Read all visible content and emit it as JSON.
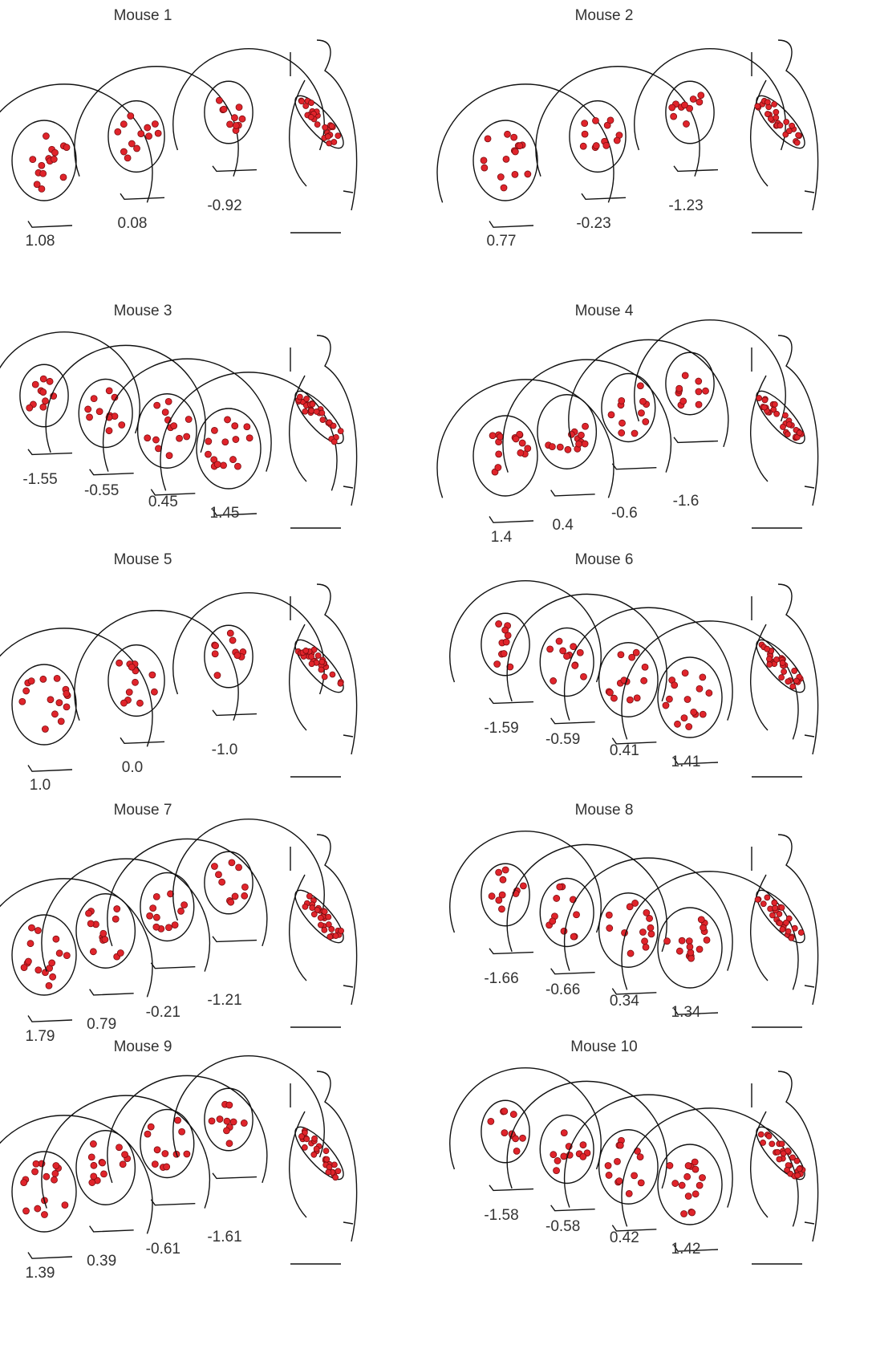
{
  "panels": [
    {
      "title": "Mouse 1",
      "sections": [
        "1.08",
        "0.08",
        "-0.92"
      ]
    },
    {
      "title": "Mouse 2",
      "sections": [
        "0.77",
        "-0.23",
        "-1.23"
      ]
    },
    {
      "title": "Mouse 3",
      "sections": [
        "-1.55",
        "-0.55",
        "0.45",
        "1.45"
      ]
    },
    {
      "title": "Mouse 4",
      "sections": [
        "1.4",
        "0.4",
        "-0.6",
        "-1.6"
      ]
    },
    {
      "title": "Mouse 5",
      "sections": [
        "1.0",
        "0.0",
        "-1.0"
      ]
    },
    {
      "title": "Mouse 6",
      "sections": [
        "-1.59",
        "-0.59",
        "0.41",
        "1.41"
      ]
    },
    {
      "title": "Mouse 7",
      "sections": [
        "1.79",
        "0.79",
        "-0.21",
        "-1.21"
      ]
    },
    {
      "title": "Mouse 8",
      "sections": [
        "-1.66",
        "-0.66",
        "0.34",
        "1.34"
      ]
    },
    {
      "title": "Mouse 9",
      "sections": [
        "1.39",
        "0.39",
        "-0.61",
        "-1.61"
      ]
    },
    {
      "title": "Mouse 10",
      "sections": [
        "-1.58",
        "-0.58",
        "0.42",
        "1.42"
      ]
    }
  ]
}
